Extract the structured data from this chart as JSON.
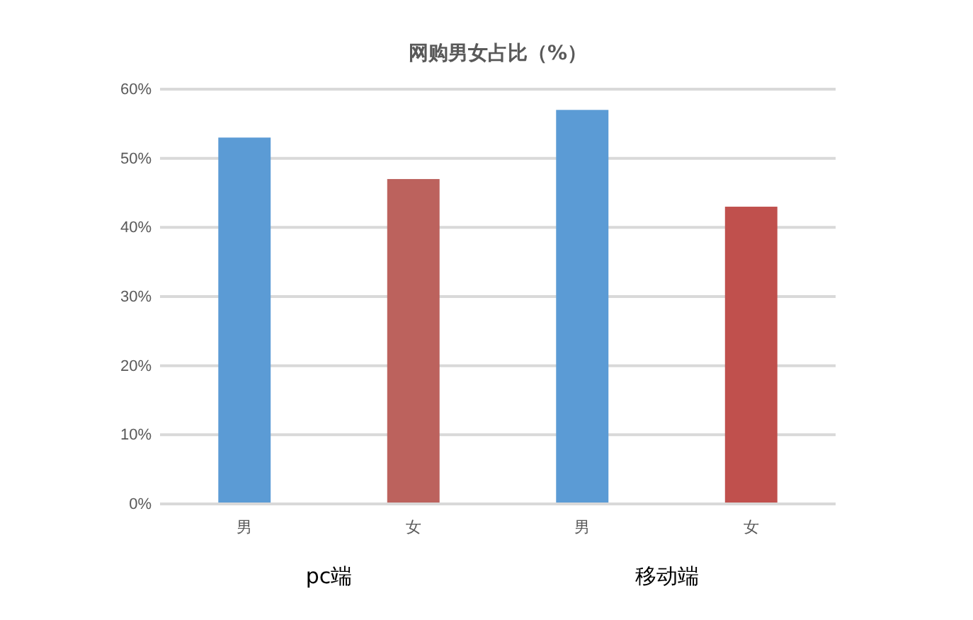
{
  "chart_data": {
    "type": "bar",
    "title": "网购男女占比（%）",
    "categories": [
      "男",
      "女",
      "男",
      "女"
    ],
    "values": [
      53,
      47,
      57,
      43
    ],
    "colors": [
      "#5b9bd5",
      "#bc625d",
      "#5b9bd5",
      "#c0504d"
    ],
    "ylim": [
      0,
      60
    ],
    "yticks": [
      {
        "value": 0,
        "label": "0%"
      },
      {
        "value": 10,
        "label": "10%"
      },
      {
        "value": 20,
        "label": "20%"
      },
      {
        "value": 30,
        "label": "30%"
      },
      {
        "value": 40,
        "label": "40%"
      },
      {
        "value": 50,
        "label": "50%"
      },
      {
        "value": 60,
        "label": "60%"
      }
    ],
    "grid": "y",
    "annotations": [
      "pc端",
      "移动端"
    ]
  }
}
